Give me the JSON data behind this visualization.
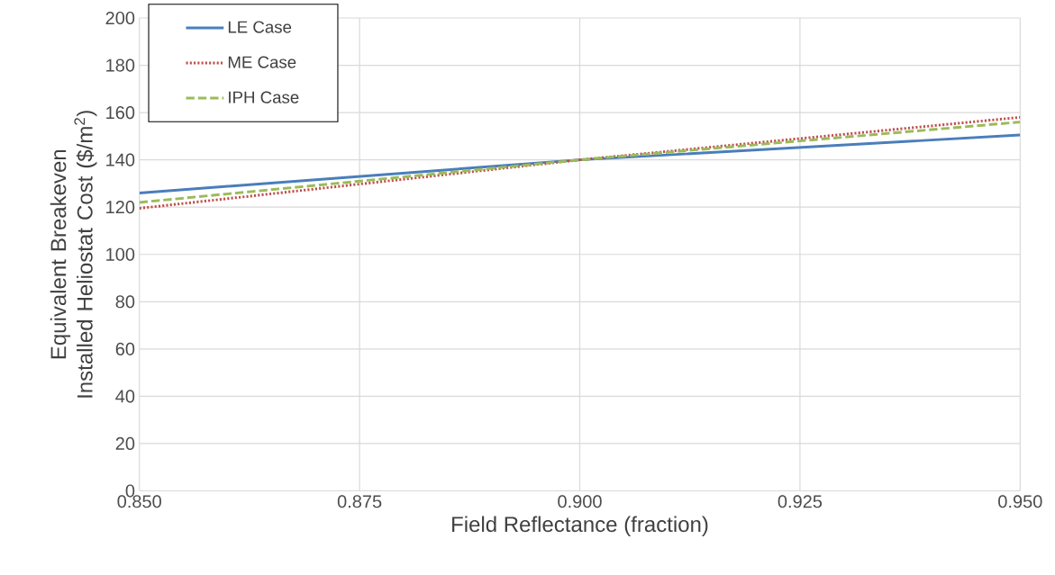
{
  "chart_data": {
    "type": "line",
    "xlabel": "Field Reflectance (fraction)",
    "ylabel": "Equivalent Breakeven Installed Heliostat Cost ($/m$^{2}$)",
    "x": [
      0.85,
      0.9,
      0.95
    ],
    "series": [
      {
        "name": "LE Case",
        "color": "#4a7ebb",
        "line_style": "solid",
        "values": [
          126,
          140,
          150.5
        ]
      },
      {
        "name": "ME Case",
        "color": "#c0504d",
        "line_style": "dotted",
        "values": [
          119.5,
          140,
          158
        ]
      },
      {
        "name": "IPH Case",
        "color": "#9bbb59",
        "line_style": "dashed",
        "values": [
          122,
          140,
          156
        ]
      }
    ],
    "xlim": [
      0.85,
      0.95
    ],
    "xticks": [
      {
        "value": 0.85,
        "label": "0.850"
      },
      {
        "value": 0.875,
        "label": "0.875"
      },
      {
        "value": 0.9,
        "label": "0.900"
      },
      {
        "value": 0.925,
        "label": "0.925"
      },
      {
        "value": 0.95,
        "label": "0.950"
      }
    ],
    "ylim": [
      0,
      200
    ],
    "yticks": [
      0,
      20,
      40,
      60,
      80,
      100,
      120,
      140,
      160,
      180,
      200
    ],
    "grid": true,
    "legend": "top left",
    "marker": "none"
  }
}
